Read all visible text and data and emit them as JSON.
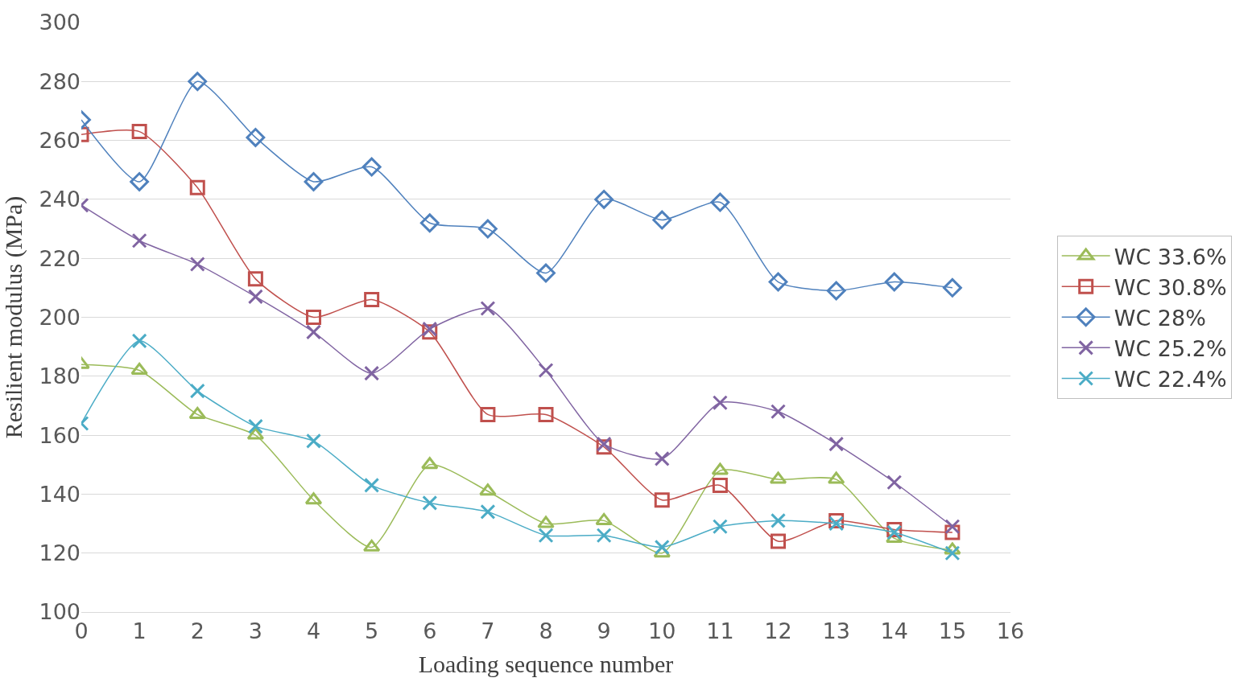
{
  "chart_data": {
    "type": "line",
    "xlabel": "Loading sequence number",
    "ylabel": "Resilient modulus (MPa)",
    "x": [
      0,
      1,
      2,
      3,
      4,
      5,
      6,
      7,
      8,
      9,
      10,
      11,
      12,
      13,
      14,
      15
    ],
    "xlim": [
      0,
      16
    ],
    "xticks": [
      0,
      1,
      2,
      3,
      4,
      5,
      6,
      7,
      8,
      9,
      10,
      11,
      12,
      13,
      14,
      15,
      16
    ],
    "ylim": [
      100,
      300
    ],
    "yticks": [
      100,
      120,
      140,
      160,
      180,
      200,
      220,
      240,
      260,
      280,
      300
    ],
    "grid": "y",
    "legend": "right",
    "series": [
      {
        "name": "WC 33.6%",
        "color": "#9bbb59",
        "marker": "triangle",
        "values": [
          184,
          182,
          167,
          160,
          138,
          122,
          150,
          141,
          130,
          131,
          120,
          148,
          145,
          145,
          125,
          121
        ]
      },
      {
        "name": "WC 30.8%",
        "color": "#c0504d",
        "marker": "square",
        "values": [
          262,
          263,
          244,
          213,
          200,
          206,
          195,
          167,
          167,
          156,
          138,
          143,
          124,
          131,
          128,
          127
        ]
      },
      {
        "name": "WC 28%",
        "color": "#4f81bd",
        "marker": "diamond",
        "values": [
          267,
          246,
          280,
          261,
          246,
          251,
          232,
          230,
          215,
          240,
          233,
          239,
          212,
          209,
          212,
          210
        ]
      },
      {
        "name": "WC 25.2%",
        "color": "#8064a2",
        "marker": "cross",
        "values": [
          238,
          226,
          218,
          207,
          195,
          181,
          196,
          203,
          182,
          157,
          152,
          171,
          168,
          157,
          144,
          129
        ]
      },
      {
        "name": "WC 22.4%",
        "color": "#4bacc6",
        "marker": "cross",
        "values": [
          164,
          192,
          175,
          163,
          158,
          143,
          137,
          134,
          126,
          126,
          122,
          129,
          131,
          130,
          127,
          120
        ]
      }
    ]
  }
}
